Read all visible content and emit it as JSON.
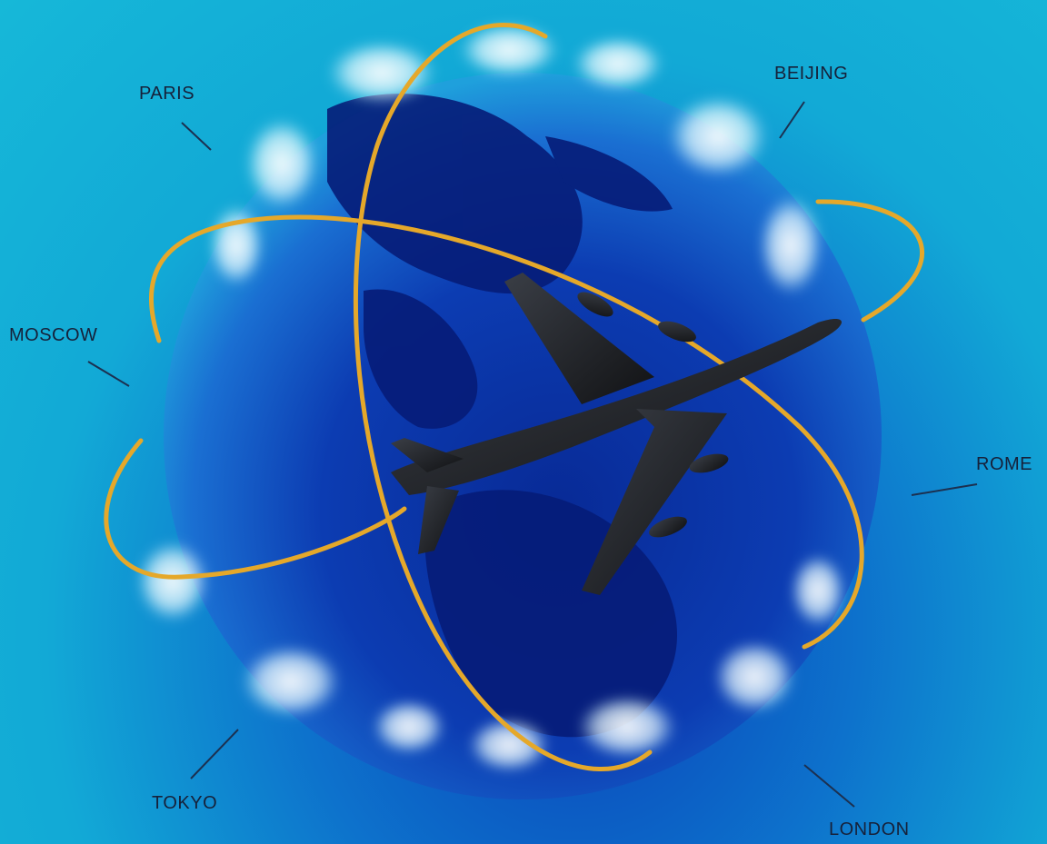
{
  "cities": {
    "paris": "PARIS",
    "beijing": "BEIJING",
    "moscow": "MOSCOW",
    "rome": "ROME",
    "tokyo": "TOKYO",
    "london": "LONDON"
  },
  "colors": {
    "background": "#16b8d8",
    "globe": "#0a2fa0",
    "orbit": "#e5a82a",
    "label": "#16213a",
    "plane": "#222428"
  },
  "icons": {
    "plane": "airplane-icon",
    "globe": "globe-icon"
  }
}
